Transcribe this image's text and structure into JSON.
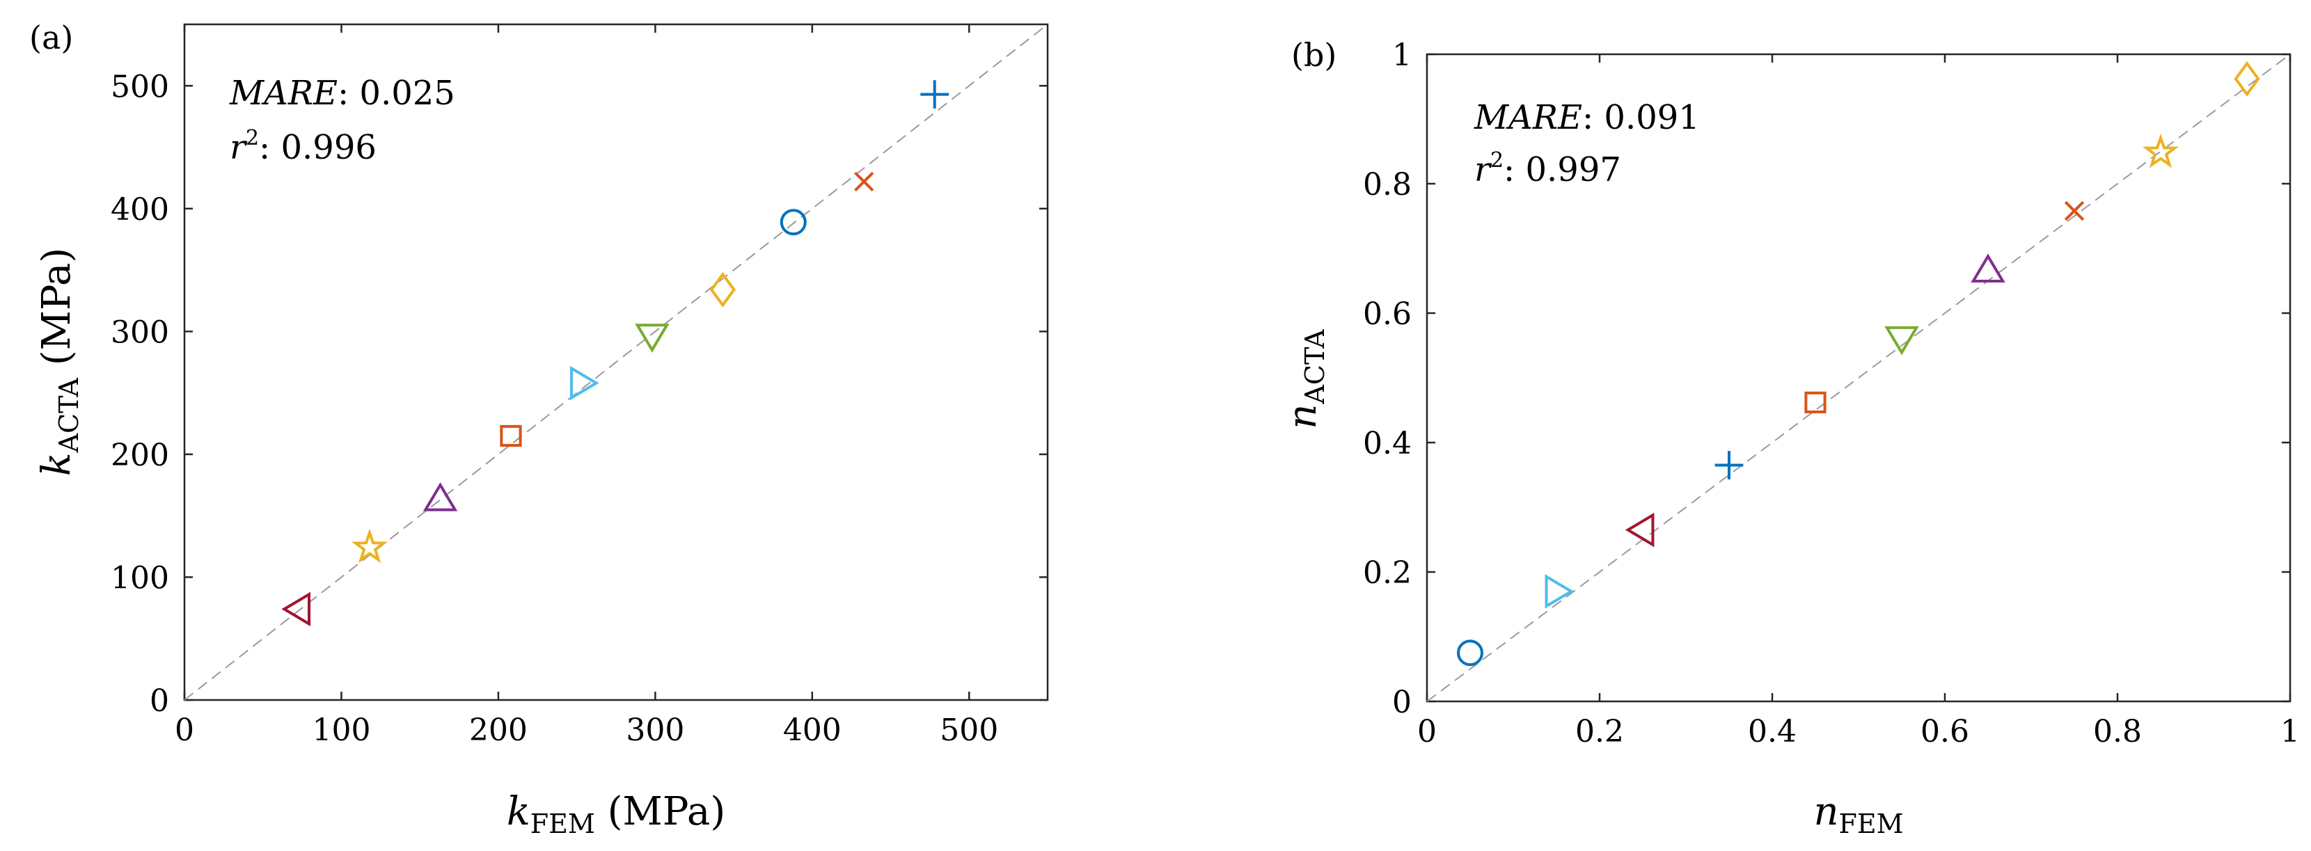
{
  "chart_data": [
    {
      "type": "scatter",
      "panel_label": "(a)",
      "title": "",
      "xlabel": {
        "symbol": "k",
        "sub": "FEM",
        "unit": " (MPa)"
      },
      "ylabel": {
        "symbol": "k",
        "sub": "ACTA",
        "unit": " (MPa)"
      },
      "xlim": [
        0,
        550
      ],
      "ylim": [
        0,
        550
      ],
      "xticks": [
        0,
        100,
        200,
        300,
        400,
        500
      ],
      "yticks": [
        0,
        100,
        200,
        300,
        400,
        500
      ],
      "xtick_labels": [
        "0",
        "100",
        "200",
        "300",
        "400",
        "500"
      ],
      "ytick_labels": [
        "0",
        "100",
        "200",
        "300",
        "400",
        "500"
      ],
      "grid": false,
      "reference_line": "y = x (dashed gray)",
      "annotations": {
        "mare_label": "MARE",
        "mare_value": ": 0.025",
        "r2_label": "r",
        "r2_sup": "2",
        "r2_value": ": 0.996"
      },
      "points": [
        {
          "marker": "triangle-left",
          "color": "#A2142F",
          "x": 73,
          "y": 74
        },
        {
          "marker": "star",
          "color": "#EDB120",
          "x": 118,
          "y": 124
        },
        {
          "marker": "triangle-up",
          "color": "#7E2F8E",
          "x": 163,
          "y": 163
        },
        {
          "marker": "square",
          "color": "#D95319",
          "x": 208,
          "y": 215
        },
        {
          "marker": "triangle-right",
          "color": "#4DBEEE",
          "x": 253,
          "y": 258
        },
        {
          "marker": "triangle-down",
          "color": "#77AC30",
          "x": 298,
          "y": 297
        },
        {
          "marker": "diamond",
          "color": "#EDB120",
          "x": 343,
          "y": 334
        },
        {
          "marker": "circle",
          "color": "#0072BD",
          "x": 388,
          "y": 389
        },
        {
          "marker": "x",
          "color": "#D95319",
          "x": 433,
          "y": 422
        },
        {
          "marker": "plus",
          "color": "#0072BD",
          "x": 478,
          "y": 493
        }
      ]
    },
    {
      "type": "scatter",
      "panel_label": "(b)",
      "title": "",
      "xlabel": {
        "symbol": "n",
        "sub": "FEM",
        "unit": ""
      },
      "ylabel": {
        "symbol": "n",
        "sub": "ACTA",
        "unit": ""
      },
      "xlim": [
        0,
        1
      ],
      "ylim": [
        0,
        1
      ],
      "xticks": [
        0,
        0.2,
        0.4,
        0.6,
        0.8,
        1
      ],
      "yticks": [
        0,
        0.2,
        0.4,
        0.6,
        0.8,
        1
      ],
      "xtick_labels": [
        "0",
        "0.2",
        "0.4",
        "0.6",
        "0.8",
        "1"
      ],
      "ytick_labels": [
        "0",
        "0.2",
        "0.4",
        "0.6",
        "0.8",
        "1"
      ],
      "grid": false,
      "reference_line": "y = x (dashed gray)",
      "annotations": {
        "mare_label": "MARE",
        "mare_value": ": 0.091",
        "r2_label": "r",
        "r2_sup": "2",
        "r2_value": ": 0.997"
      },
      "points": [
        {
          "marker": "circle",
          "color": "#0072BD",
          "x": 0.05,
          "y": 0.075
        },
        {
          "marker": "triangle-right",
          "color": "#4DBEEE",
          "x": 0.15,
          "y": 0.17
        },
        {
          "marker": "triangle-left",
          "color": "#A2142F",
          "x": 0.25,
          "y": 0.265
        },
        {
          "marker": "plus",
          "color": "#0072BD",
          "x": 0.35,
          "y": 0.365
        },
        {
          "marker": "square",
          "color": "#D95319",
          "x": 0.45,
          "y": 0.462
        },
        {
          "marker": "triangle-down",
          "color": "#77AC30",
          "x": 0.55,
          "y": 0.562
        },
        {
          "marker": "triangle-up",
          "color": "#7E2F8E",
          "x": 0.65,
          "y": 0.665
        },
        {
          "marker": "x",
          "color": "#D95319",
          "x": 0.75,
          "y": 0.758
        },
        {
          "marker": "star",
          "color": "#EDB120",
          "x": 0.85,
          "y": 0.848
        },
        {
          "marker": "diamond",
          "color": "#EDB120",
          "x": 0.95,
          "y": 0.962
        }
      ]
    }
  ]
}
